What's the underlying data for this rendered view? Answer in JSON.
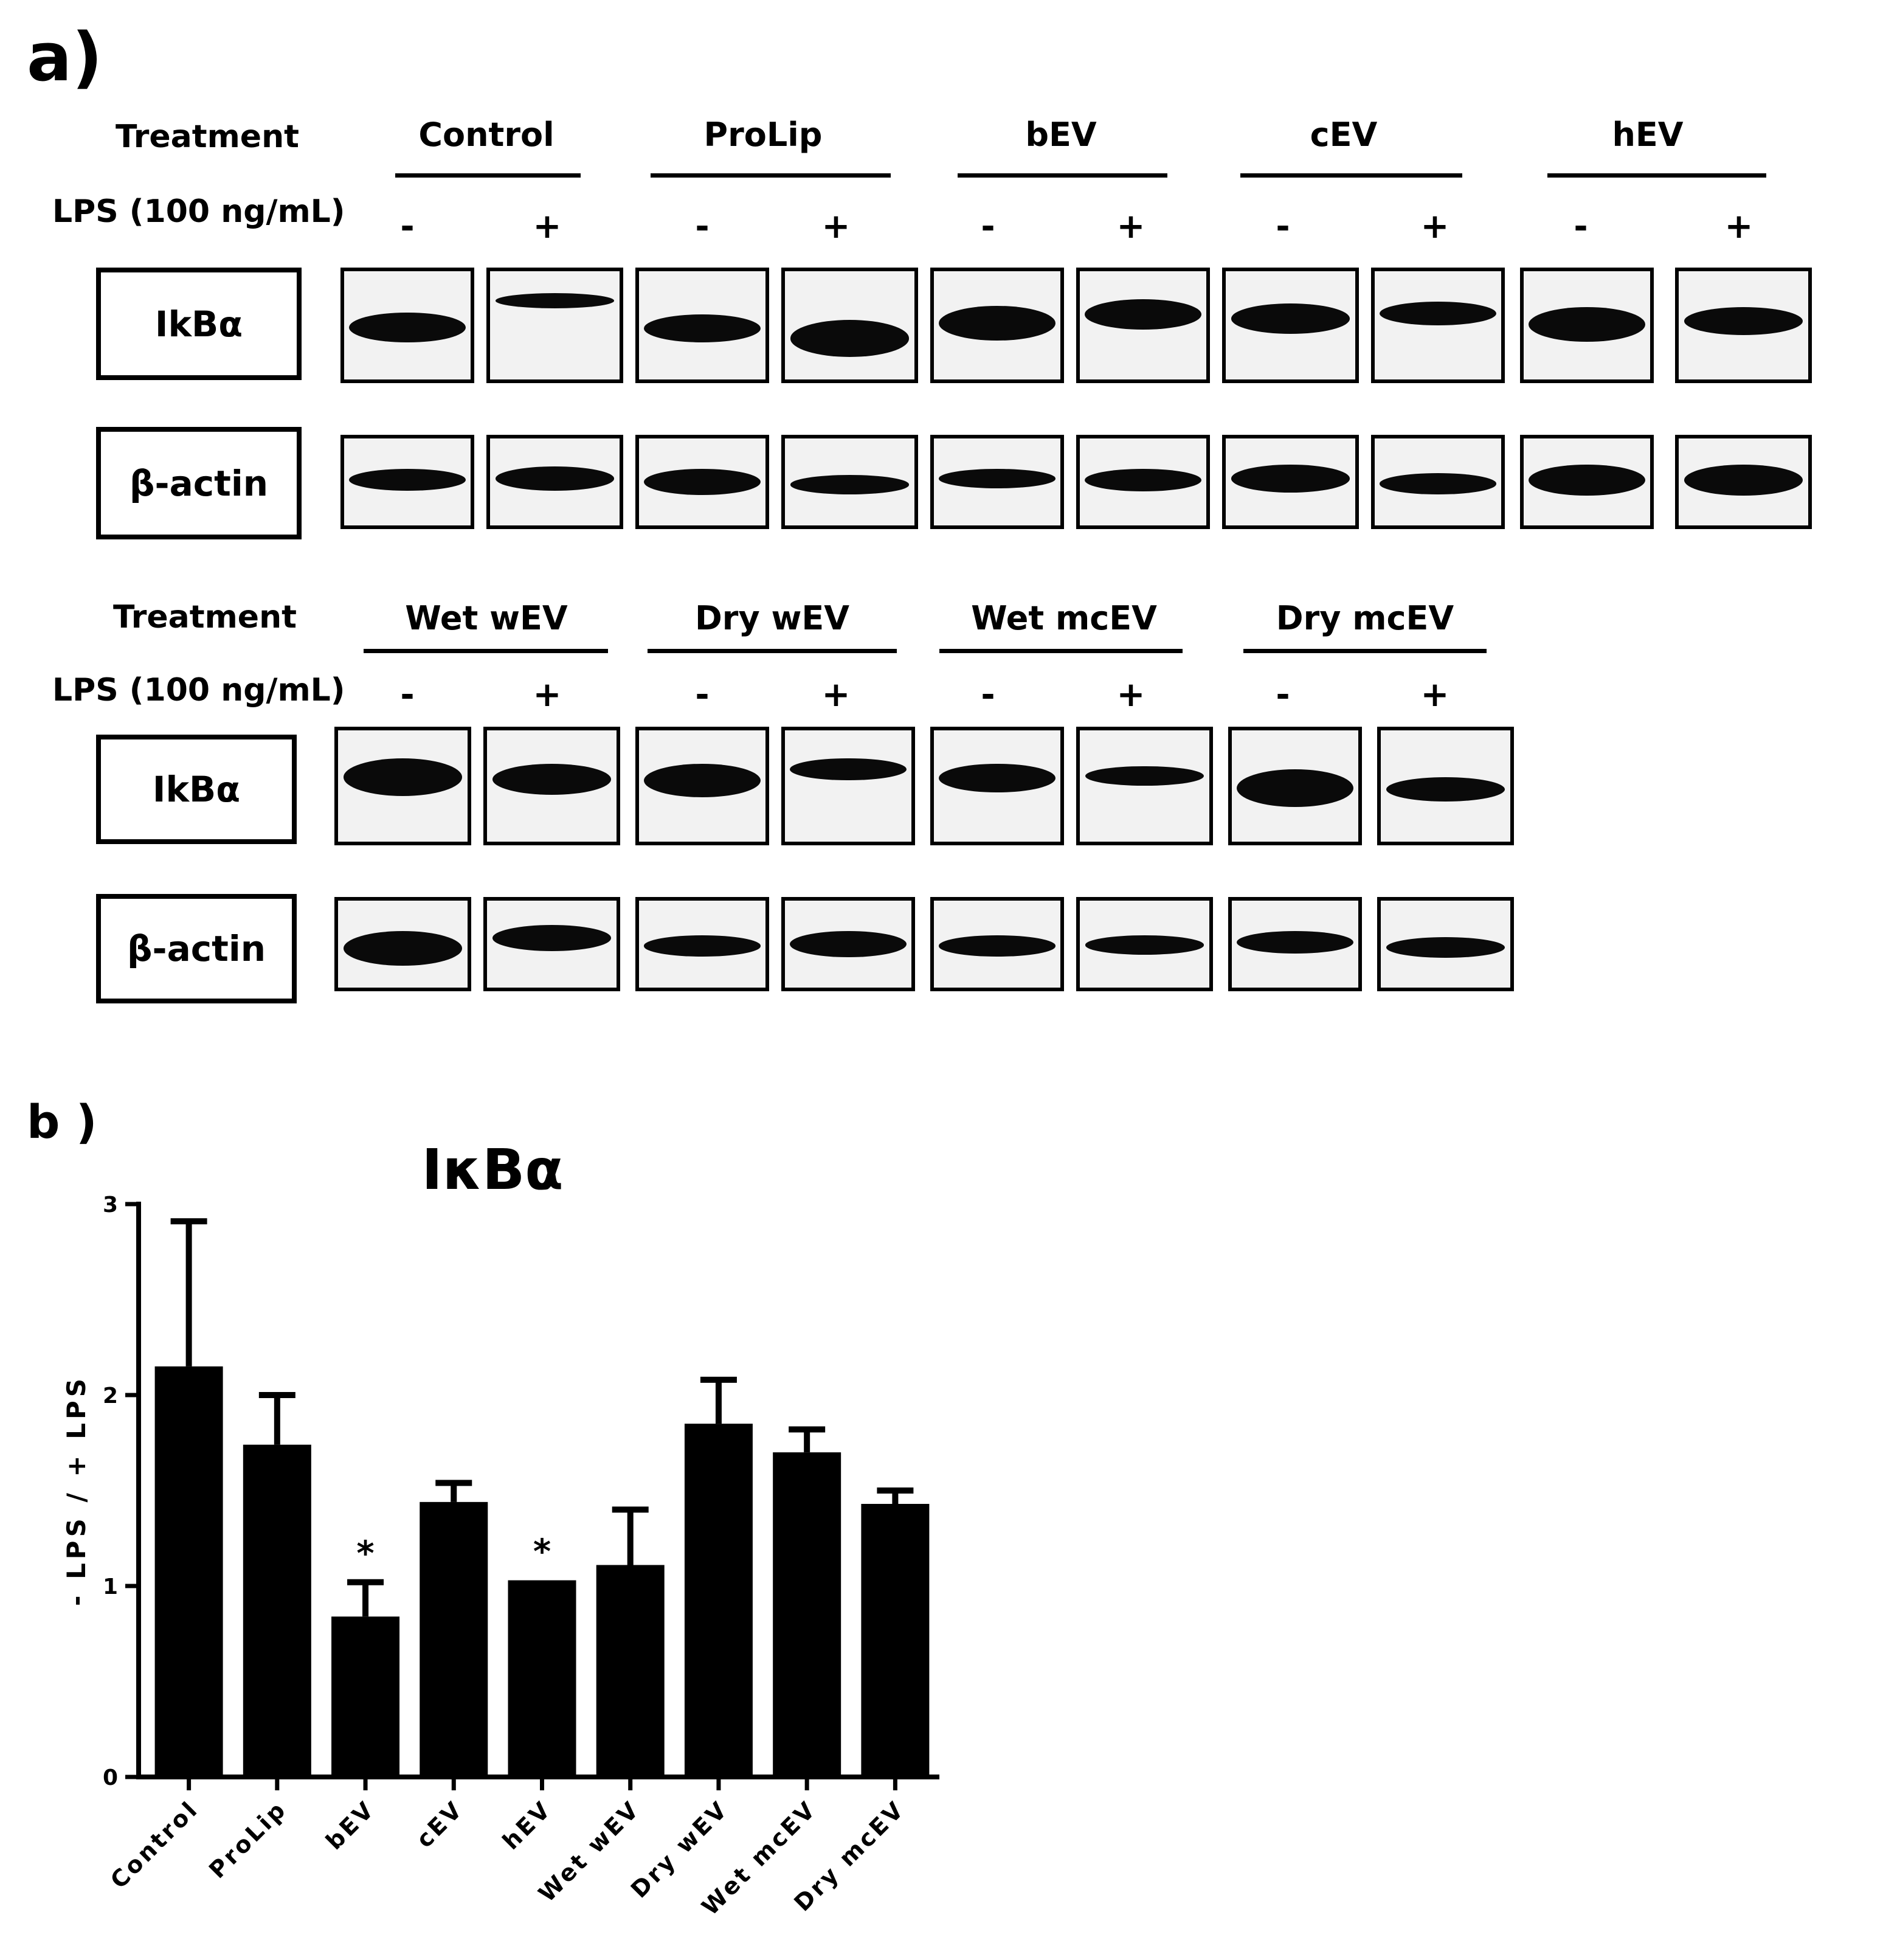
{
  "panel_a": {
    "letter": "a)",
    "treatment_label": "Treatment",
    "lps_label": "LPS (100 ng/mL)",
    "row_labels": {
      "ikba": "IkBα",
      "actin": "β-actin"
    },
    "top_groups": [
      "Control",
      "ProLip",
      "bEV",
      "cEV",
      "hEV"
    ],
    "bottom_groups": [
      "Wet wEV",
      "Dry wEV",
      "Wet mcEV",
      "Dry mcEV"
    ],
    "minus": "-",
    "plus": "+"
  },
  "panel_b": {
    "letter": "b )"
  },
  "chart_data": {
    "type": "bar",
    "title": "IκBα",
    "ylabel": "- LPS / + LPS",
    "xlabel": "",
    "ylim": [
      0,
      3
    ],
    "yticks": [
      "0",
      "1",
      "2",
      "3"
    ],
    "categories": [
      "Control",
      "ProLip",
      "bEV",
      "cEV",
      "hEV",
      "Wet wEV",
      "Dry wEV",
      "Wet mcEV",
      "Dry mcEV"
    ],
    "values": [
      2.15,
      1.74,
      0.84,
      1.44,
      1.03,
      1.11,
      1.85,
      1.7,
      1.43
    ],
    "error_upper": [
      0.76,
      0.26,
      0.18,
      0.1,
      0.0,
      0.29,
      0.23,
      0.12,
      0.07
    ],
    "annotations": [
      "",
      "",
      "*",
      "",
      "*",
      "",
      "",
      "",
      ""
    ],
    "bar_color": "#000000",
    "grid": false
  }
}
